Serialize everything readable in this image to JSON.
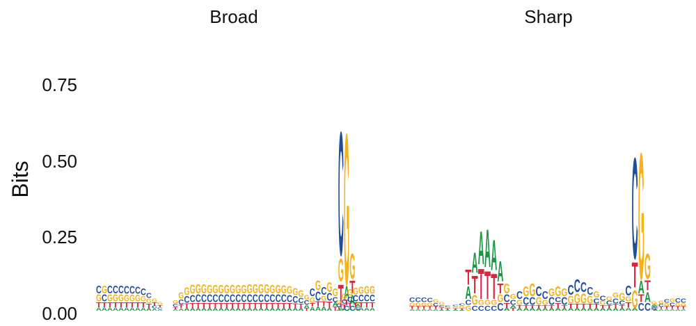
{
  "colors": {
    "A": "#1a9641",
    "C": "#1f4e9c",
    "G": "#f5b21b",
    "T": "#d7263d"
  },
  "chart_data": {
    "type": "sequence-logo",
    "ylabel": "Bits",
    "ylim": [
      0,
      0.9
    ],
    "yticks": [
      {
        "value": 0.0,
        "label": "0.00"
      },
      {
        "value": 0.25,
        "label": "0.25"
      },
      {
        "value": 0.5,
        "label": "0.50"
      },
      {
        "value": 0.75,
        "label": "0.75"
      }
    ],
    "panels": [
      {
        "title": "Broad",
        "segments": [
          {
            "positions": [
              {
                "A": 0.012,
                "T": 0.02,
                "C": 0.03,
                "G": 0.028
              },
              {
                "A": 0.012,
                "T": 0.02,
                "G": 0.03,
                "C": 0.028
              },
              {
                "A": 0.012,
                "T": 0.02,
                "C": 0.03,
                "G": 0.028
              },
              {
                "A": 0.012,
                "T": 0.02,
                "C": 0.03,
                "G": 0.028
              },
              {
                "A": 0.012,
                "T": 0.02,
                "C": 0.03,
                "G": 0.028
              },
              {
                "A": 0.012,
                "T": 0.02,
                "C": 0.03,
                "G": 0.026
              },
              {
                "A": 0.012,
                "T": 0.02,
                "C": 0.03,
                "G": 0.026
              },
              {
                "A": 0.012,
                "T": 0.02,
                "C": 0.028,
                "G": 0.026
              },
              {
                "A": 0.012,
                "T": 0.02,
                "C": 0.026,
                "G": 0.022
              },
              {
                "A": 0.01,
                "T": 0.016,
                "C": 0.02,
                "G": 0.018
              },
              {
                "A": 0.008,
                "T": 0.012,
                "G": 0.014,
                "C": 0.01
              },
              {
                "A": 0.006,
                "T": 0.008,
                "G": 0.01,
                "C": 0.006
              }
            ]
          },
          {
            "positions": [
              {
                "A": 0.005,
                "T": 0.008,
                "C": 0.012,
                "G": 0.012
              },
              {
                "A": 0.008,
                "T": 0.014,
                "C": 0.02,
                "G": 0.024
              },
              {
                "A": 0.01,
                "T": 0.018,
                "C": 0.026,
                "G": 0.03
              },
              {
                "A": 0.01,
                "T": 0.02,
                "C": 0.028,
                "G": 0.035
              },
              {
                "A": 0.01,
                "T": 0.02,
                "C": 0.03,
                "G": 0.035
              },
              {
                "A": 0.01,
                "T": 0.02,
                "C": 0.03,
                "G": 0.035
              },
              {
                "A": 0.01,
                "T": 0.02,
                "C": 0.03,
                "G": 0.033
              },
              {
                "A": 0.01,
                "T": 0.02,
                "C": 0.03,
                "G": 0.033
              },
              {
                "A": 0.01,
                "T": 0.02,
                "C": 0.03,
                "G": 0.033
              },
              {
                "A": 0.01,
                "T": 0.02,
                "C": 0.03,
                "G": 0.033
              },
              {
                "A": 0.01,
                "T": 0.02,
                "C": 0.03,
                "G": 0.033
              },
              {
                "A": 0.01,
                "T": 0.02,
                "C": 0.03,
                "G": 0.033
              },
              {
                "A": 0.01,
                "T": 0.02,
                "C": 0.03,
                "G": 0.034
              },
              {
                "A": 0.01,
                "T": 0.02,
                "C": 0.03,
                "G": 0.035
              },
              {
                "A": 0.01,
                "T": 0.02,
                "C": 0.03,
                "G": 0.036
              },
              {
                "A": 0.01,
                "T": 0.02,
                "C": 0.03,
                "G": 0.036
              },
              {
                "A": 0.01,
                "T": 0.02,
                "C": 0.03,
                "G": 0.035
              },
              {
                "A": 0.01,
                "T": 0.02,
                "C": 0.03,
                "G": 0.034
              },
              {
                "A": 0.01,
                "T": 0.02,
                "C": 0.03,
                "G": 0.033
              },
              {
                "A": 0.01,
                "T": 0.02,
                "C": 0.03,
                "G": 0.032
              },
              {
                "A": 0.01,
                "T": 0.02,
                "C": 0.028,
                "G": 0.03
              },
              {
                "A": 0.01,
                "T": 0.018,
                "C": 0.026,
                "G": 0.028
              },
              {
                "A": 0.01,
                "T": 0.016,
                "C": 0.022,
                "G": 0.026
              },
              {
                "A": 0.012,
                "T": 0.01,
                "C": 0.016,
                "G": 0.018
              },
              {
                "A": 0.014,
                "T": 0.014,
                "G": 0.022,
                "C": 0.03
              },
              {
                "A": 0.015,
                "T": 0.02,
                "C": 0.035,
                "G": 0.04
              },
              {
                "A": 0.015,
                "T": 0.02,
                "G": 0.02,
                "C": 0.03,
                "A2": 0,
                "C2": 0
              },
              {
                "A": 0.01,
                "T": 0.025,
                "G": 0.04,
                "C": 0.03,
                "T2": 0
              },
              {
                "T": 0.015,
                "G": 0.03,
                "A": 0.015,
                "C": 0.02
              },
              {
                "A": 0.012,
                "T": 0.09,
                "G": 0.09,
                "C": 0.49
              },
              {
                "C": 0.02,
                "T": 0.02,
                "A": 0.05,
                "G": 0.6
              },
              {
                "A": 0.04,
                "C": 0.02,
                "G": 0.1,
                "T": 0.05
              },
              {
                "A": 0.01,
                "T": 0.005,
                "C": 0.008,
                "G": 0.01
              }
            ]
          },
          {
            "positions": [
              {
                "A": 0.006,
                "T": 0.008,
                "C": 0.01,
                "G": 0.012
              },
              {
                "A": 0.01,
                "T": 0.014,
                "C": 0.018,
                "G": 0.02
              },
              {
                "A": 0.012,
                "T": 0.018,
                "C": 0.022,
                "G": 0.024
              },
              {
                "A": 0.012,
                "T": 0.02,
                "C": 0.024,
                "G": 0.026
              },
              {
                "A": 0.012,
                "T": 0.02,
                "C": 0.026,
                "G": 0.028
              },
              {
                "A": 0.012,
                "T": 0.02,
                "C": 0.026,
                "G": 0.03
              },
              {
                "A": 0.012,
                "T": 0.02,
                "C": 0.026,
                "G": 0.03
              }
            ]
          }
        ]
      },
      {
        "title": "Sharp",
        "segments": [
          {
            "positions": [
              {
                "A": 0.006,
                "T": 0.01,
                "G": 0.014,
                "C": 0.018
              },
              {
                "A": 0.006,
                "T": 0.01,
                "G": 0.014,
                "C": 0.018
              },
              {
                "A": 0.006,
                "T": 0.01,
                "G": 0.014,
                "C": 0.018
              },
              {
                "A": 0.006,
                "T": 0.01,
                "G": 0.014,
                "C": 0.016
              },
              {
                "A": 0.006,
                "T": 0.01,
                "C": 0.012,
                "G": 0.014
              },
              {
                "A": 0.004,
                "T": 0.008,
                "C": 0.008,
                "G": 0.01
              },
              {
                "A": 0.003,
                "T": 0.005,
                "G": 0.005,
                "C": 0.006
              }
            ]
          },
          {
            "positions": [
              {
                "A": 0.004,
                "T": 0.005,
                "G": 0.006,
                "C": 0.006
              },
              {
                "A": 0.004,
                "T": 0.006,
                "G": 0.008,
                "C": 0.008
              },
              {
                "G": 0.02,
                "C": 0.02,
                "A": 0.05,
                "T": 0.06
              },
              {
                "C": 0.02,
                "G": 0.04,
                "T": 0.07,
                "A": 0.08
              },
              {
                "C": 0.02,
                "G": 0.02,
                "T": 0.12,
                "A": 0.13
              },
              {
                "C": 0.02,
                "G": 0.02,
                "T": 0.11,
                "A": 0.15
              },
              {
                "C": 0.02,
                "G": 0.02,
                "T": 0.1,
                "A": 0.12
              },
              {
                "C": 0.03,
                "G": 0.03,
                "T": 0.04,
                "A": 0.08
              },
              {
                "C": 0.03,
                "T": 0.02,
                "A": 0.01,
                "G": 0.04
              },
              {
                "C": 0.02,
                "T": 0.01,
                "A": 0.01,
                "G": 0.02
              },
              {
                "A": 0.01,
                "T": 0.01,
                "G": 0.02,
                "C": 0.03
              },
              {
                "A": 0.01,
                "T": 0.01,
                "C": 0.03,
                "G": 0.04
              },
              {
                "A": 0.01,
                "T": 0.01,
                "C": 0.03,
                "G": 0.05
              },
              {
                "A": 0.01,
                "T": 0.01,
                "G": 0.03,
                "C": 0.04
              },
              {
                "A": 0.01,
                "T": 0.01,
                "C": 0.03,
                "G": 0.02
              },
              {
                "A": 0.01,
                "T": 0.01,
                "C": 0.03,
                "G": 0.03
              },
              {
                "A": 0.01,
                "T": 0.02,
                "C": 0.02,
                "G": 0.04
              },
              {
                "A": 0.01,
                "T": 0.01,
                "C": 0.03,
                "G": 0.03
              },
              {
                "A": 0.01,
                "T": 0.015,
                "G": 0.03,
                "C": 0.04
              },
              {
                "A": 0.01,
                "T": 0.015,
                "G": 0.04,
                "C": 0.05
              },
              {
                "A": 0.01,
                "T": 0.015,
                "G": 0.04,
                "C": 0.04
              },
              {
                "A": 0.01,
                "T": 0.015,
                "G": 0.03,
                "C": 0.03
              },
              {
                "A": 0.01,
                "T": 0.015,
                "C": 0.02,
                "G": 0.025
              },
              {
                "A": 0.01,
                "T": 0.01,
                "G": 0.015,
                "C": 0.02
              },
              {
                "A": 0.01,
                "T": 0.01,
                "C": 0.015,
                "G": 0.015
              },
              {
                "A": 0.01,
                "T": 0.015,
                "C": 0.02,
                "G": 0.02
              },
              {
                "A": 0.01,
                "T": 0.01,
                "C": 0.015,
                "G": 0.03
              },
              {
                "A": 0.012,
                "T": 0.02,
                "G": 0.02,
                "C": 0.04
              },
              {
                "A": 0.01,
                "T": 0.1,
                "G": 0.07,
                "C": 0.4
              },
              {
                "C": 0.03,
                "T": 0.03,
                "A": 0.05,
                "G": 0.5
              },
              {
                "A": 0.04,
                "C": 0.03,
                "G": 0.1,
                "T": 0.04
              },
              {
                "A": 0.01,
                "T": 0.005,
                "C": 0.008,
                "G": 0.01
              }
            ]
          },
          {
            "positions": [
              {
                "A": 0.004,
                "T": 0.006,
                "C": 0.008,
                "G": 0.008
              },
              {
                "A": 0.006,
                "T": 0.008,
                "C": 0.01,
                "G": 0.012
              },
              {
                "A": 0.006,
                "T": 0.01,
                "G": 0.012,
                "C": 0.014
              },
              {
                "A": 0.006,
                "T": 0.01,
                "C": 0.014,
                "G": 0.014
              },
              {
                "A": 0.006,
                "T": 0.01,
                "G": 0.012,
                "C": 0.018
              },
              {
                "A": 0.006,
                "T": 0.01,
                "G": 0.012,
                "C": 0.016
              }
            ]
          }
        ]
      }
    ]
  }
}
